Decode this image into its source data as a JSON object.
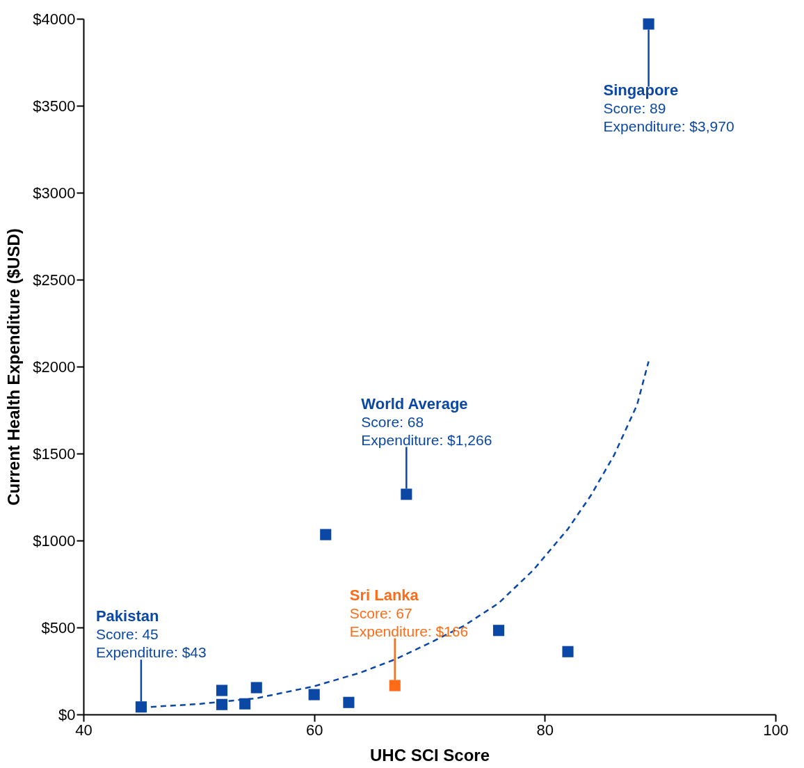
{
  "chart_data": {
    "type": "scatter",
    "xlabel": "UHC SCI Score",
    "ylabel": "Current Health Expenditure ($USD)",
    "xlim": [
      40,
      100
    ],
    "xticks": [
      40,
      60,
      80,
      100
    ],
    "ylim": [
      0,
      4000
    ],
    "yticks": [
      {
        "value": 0,
        "label": "$0"
      },
      {
        "value": 500,
        "label": "$500"
      },
      {
        "value": 1000,
        "label": "$1000"
      },
      {
        "value": 1500,
        "label": "$1500"
      },
      {
        "value": 2000,
        "label": "$2000"
      },
      {
        "value": 2500,
        "label": "$2500"
      },
      {
        "value": 3000,
        "label": "$3000"
      },
      {
        "value": 3500,
        "label": "$3500"
      },
      {
        "value": 4000,
        "label": "$4000"
      }
    ],
    "grid": false,
    "marker": "square",
    "series": [
      {
        "color": "#0b48a6",
        "x": [
          89,
          45,
          52,
          52,
          54,
          55,
          60,
          61,
          63,
          68,
          76,
          82
        ],
        "values": [
          3970,
          43,
          138,
          57,
          61,
          154,
          114,
          1034,
          69,
          1266,
          483,
          361
        ]
      },
      {
        "color": "#ff6b16",
        "x": [
          67
        ],
        "values": [
          166
        ]
      },
      {
        "type": "line",
        "line_style": "dashed",
        "marker": "none",
        "color": "#0b48a6",
        "x": [
          45,
          50,
          55,
          60,
          64,
          67,
          70,
          73,
          76,
          79,
          82,
          84,
          86,
          88,
          89
        ],
        "values": [
          40,
          60,
          93,
          162,
          240,
          316,
          410,
          510,
          640,
          830,
          1066,
          1260,
          1490,
          1780,
          2030
        ]
      }
    ],
    "annotations": [
      {
        "text": "Singapore\nScore: 89\nExpenditure: $3,970",
        "x": 89,
        "y": 3970
      },
      {
        "text": "World Average\nScore: 68\nExpenditure: $1,266",
        "x": 68,
        "y": 1266
      },
      {
        "text": "Pakistan\nScore: 45\nExpenditure: $43",
        "x": 45,
        "y": 43
      },
      {
        "text": "Sri Lanka\nScore: 67\nExpenditure: $166",
        "x": 67,
        "y": 166
      }
    ]
  }
}
